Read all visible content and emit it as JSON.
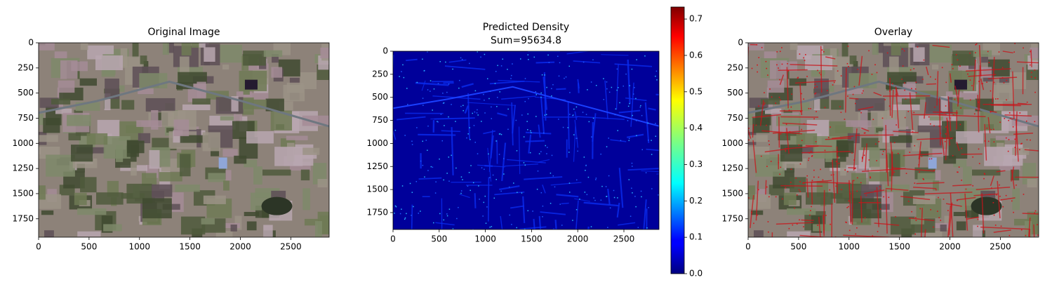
{
  "chart_data": [
    {
      "type": "image",
      "title": "Original Image",
      "style": "photo",
      "xlim": [
        0,
        2880
      ],
      "ylim": [
        1933,
        0
      ],
      "xticks": [
        0,
        500,
        1000,
        1500,
        2000,
        2500
      ],
      "yticks": [
        0,
        250,
        500,
        750,
        1000,
        1250,
        1500,
        1750
      ]
    },
    {
      "type": "image",
      "title": "Predicted Density",
      "subtitle": "Sum=95634.8",
      "style": "density",
      "xlim": [
        0,
        2880
      ],
      "ylim": [
        1933,
        0
      ],
      "xticks": [
        0,
        500,
        1000,
        1500,
        2000,
        2500
      ],
      "yticks": [
        0,
        250,
        500,
        750,
        1000,
        1250,
        1500,
        1750
      ],
      "colormap": "jet",
      "clim": [
        0,
        0.733
      ],
      "cticks": [
        {
          "value": 0,
          "label": "0.0"
        },
        {
          "value": 0.1,
          "label": "0.1"
        },
        {
          "value": 0.2,
          "label": "0.2"
        },
        {
          "value": 0.3,
          "label": "0.3"
        },
        {
          "value": 0.4,
          "label": "0.4"
        },
        {
          "value": 0.5,
          "label": "0.5"
        },
        {
          "value": 0.6,
          "label": "0.6"
        },
        {
          "value": 0.7,
          "label": "0.7"
        }
      ]
    },
    {
      "type": "image",
      "title": "Overlay",
      "style": "overlay",
      "xlim": [
        0,
        2880
      ],
      "ylim": [
        1933,
        0
      ],
      "xticks": [
        0,
        500,
        1000,
        1500,
        2000,
        2500
      ],
      "yticks": [
        0,
        250,
        500,
        750,
        1000,
        1250,
        1500,
        1750
      ]
    }
  ]
}
